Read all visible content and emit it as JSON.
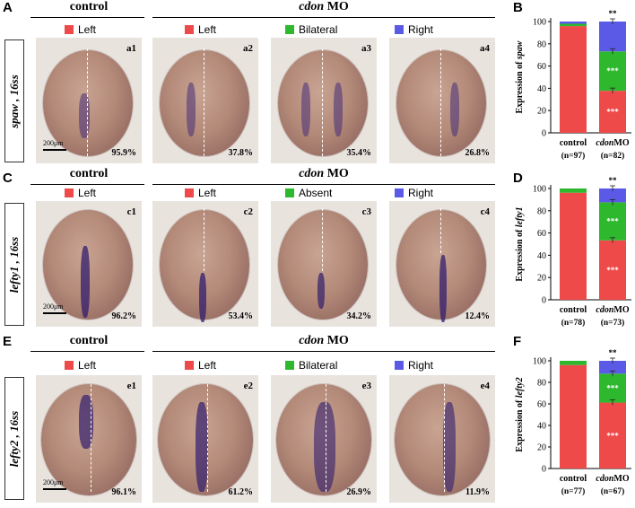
{
  "colors": {
    "left": "#ee4a4a",
    "bilateral": "#2db82d",
    "right": "#5a5ae6"
  },
  "panel_letters": [
    "A",
    "B",
    "C",
    "D",
    "E",
    "F"
  ],
  "rows": [
    {
      "control_title": "control",
      "mo_gene": "cdon",
      "mo_suffix": " MO",
      "side_label": "spaw , 16ss",
      "legend": [
        "Left",
        "Left",
        "Bilateral",
        "Right"
      ],
      "images": [
        {
          "label": "a1",
          "pct": "95.9%"
        },
        {
          "label": "a2",
          "pct": "37.8%"
        },
        {
          "label": "a3",
          "pct": "35.4%"
        },
        {
          "label": "a4",
          "pct": "26.8%"
        }
      ],
      "scale": "200μm"
    },
    {
      "control_title": "control",
      "mo_gene": "cdon",
      "mo_suffix": " MO",
      "side_label": "lefty1 , 16ss",
      "legend": [
        "Left",
        "Left",
        "Absent",
        "Right"
      ],
      "images": [
        {
          "label": "c1",
          "pct": "96.2%"
        },
        {
          "label": "c2",
          "pct": "53.4%"
        },
        {
          "label": "c3",
          "pct": "34.2%"
        },
        {
          "label": "c4",
          "pct": "12.4%"
        }
      ],
      "scale": "200μm"
    },
    {
      "control_title": "control",
      "mo_gene": "cdon",
      "mo_suffix": " MO",
      "side_label": "lefty2 , 16ss",
      "legend": [
        "Left",
        "Left",
        "Bilateral",
        "Right"
      ],
      "images": [
        {
          "label": "e1",
          "pct": "96.1%"
        },
        {
          "label": "e2",
          "pct": "61.2%"
        },
        {
          "label": "e3",
          "pct": "26.9%"
        },
        {
          "label": "e4",
          "pct": "11.9%"
        }
      ],
      "scale": "200μm"
    }
  ],
  "chart_data": [
    {
      "type": "bar",
      "stacked": true,
      "ylabel_prefix": "Expression of ",
      "ylabel_gene": "spaw",
      "ylim": [
        0,
        100
      ],
      "yticks": [
        0,
        20,
        40,
        60,
        80,
        100
      ],
      "categories": [
        "control",
        "cdonMO"
      ],
      "n_labels": [
        "(n=97)",
        "(n=82)"
      ],
      "series": [
        {
          "name": "Left",
          "values": [
            95.9,
            37.8
          ]
        },
        {
          "name": "Bilateral",
          "values": [
            2.1,
            35.4
          ]
        },
        {
          "name": "Right",
          "values": [
            2.0,
            26.8
          ]
        }
      ],
      "significance": [
        "***",
        "***",
        "**"
      ]
    },
    {
      "type": "bar",
      "stacked": true,
      "ylabel_prefix": "Expression of ",
      "ylabel_gene": "lefty1",
      "ylim": [
        0,
        100
      ],
      "yticks": [
        0,
        20,
        40,
        60,
        80,
        100
      ],
      "categories": [
        "control",
        "cdonMO"
      ],
      "n_labels": [
        "(n=78)",
        "(n=73)"
      ],
      "series": [
        {
          "name": "Left",
          "values": [
            96.2,
            53.4
          ]
        },
        {
          "name": "Absent",
          "values": [
            3.8,
            34.2
          ]
        },
        {
          "name": "Right",
          "values": [
            0,
            12.4
          ]
        }
      ],
      "significance": [
        "***",
        "***",
        "**"
      ]
    },
    {
      "type": "bar",
      "stacked": true,
      "ylabel_prefix": "Expression of ",
      "ylabel_gene": "lefty2",
      "ylim": [
        0,
        100
      ],
      "yticks": [
        0,
        20,
        40,
        60,
        80,
        100
      ],
      "categories": [
        "control",
        "cdonMO"
      ],
      "n_labels": [
        "(n=77)",
        "(n=67)"
      ],
      "series": [
        {
          "name": "Left",
          "values": [
            96.1,
            61.2
          ]
        },
        {
          "name": "Bilateral",
          "values": [
            3.9,
            26.9
          ]
        },
        {
          "name": "Right",
          "values": [
            0,
            11.9
          ]
        }
      ],
      "significance": [
        "***",
        "***",
        "**"
      ]
    }
  ]
}
